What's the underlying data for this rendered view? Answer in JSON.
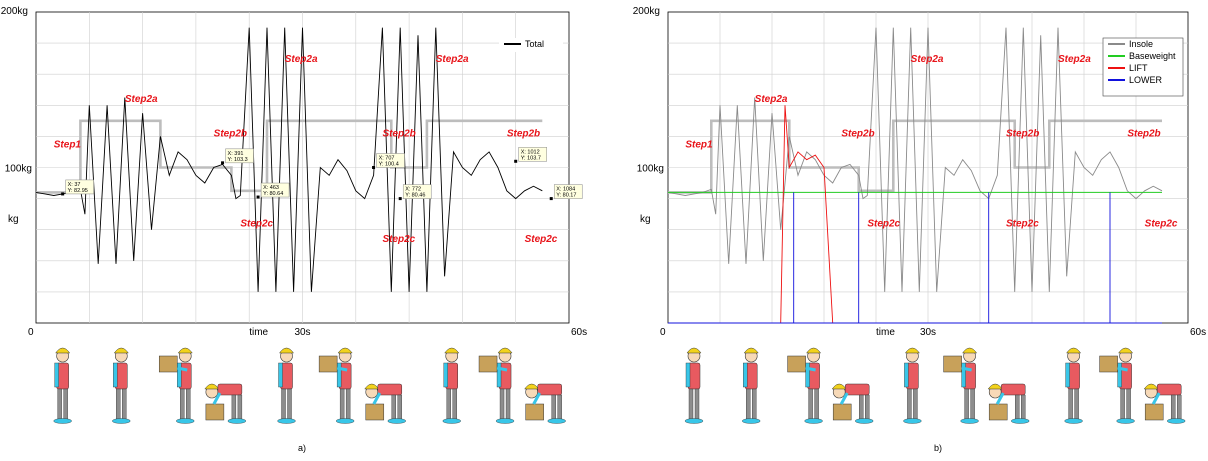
{
  "colors": {
    "total": "#000000",
    "insole": "#8a8a8a",
    "baseweight": "#22cc22",
    "lift": "#ee1111",
    "lower": "#1111dd",
    "ideal": "#bdbdbd",
    "step_label": "#e8141a"
  },
  "chart_data": [
    {
      "type": "line",
      "panel_caption": "a)",
      "xlabel": "time",
      "ylabel": "kg",
      "x_tick_labels": [
        "0",
        "30s",
        "60s"
      ],
      "y_tick_labels": [
        "100kg",
        "200kg"
      ],
      "xlim": [
        0,
        60
      ],
      "ylim": [
        0,
        200
      ],
      "grid": true,
      "legend_position": "top-right",
      "series": [
        {
          "name": "Total",
          "key": "total",
          "x": [
            0,
            1,
            2,
            3,
            4,
            5,
            5.5,
            6,
            7,
            8,
            9,
            10,
            11,
            12,
            13,
            14,
            15,
            16,
            17,
            18,
            19,
            20,
            21,
            22,
            22.5,
            23,
            24,
            25,
            26,
            27,
            28,
            29,
            30,
            31,
            32,
            33,
            34,
            35,
            36,
            37,
            38,
            39,
            40,
            41,
            42,
            43,
            44,
            45,
            46,
            47,
            48,
            49,
            50,
            51,
            52,
            53,
            54,
            55,
            56,
            57
          ],
          "y": [
            84,
            83,
            82,
            83,
            84,
            86,
            70,
            140,
            38,
            140,
            38,
            145,
            40,
            135,
            60,
            120,
            95,
            110,
            105,
            95,
            90,
            100,
            102,
            95,
            80,
            82,
            190,
            20,
            190,
            20,
            190,
            20,
            190,
            20,
            100,
            95,
            105,
            98,
            85,
            80,
            95,
            190,
            20,
            190,
            20,
            185,
            20,
            190,
            30,
            110,
            100,
            95,
            105,
            110,
            100,
            85,
            80,
            85,
            88,
            85
          ]
        }
      ],
      "ideal_profile": {
        "x": [
          0,
          5,
          5,
          14,
          14,
          22,
          22,
          26,
          26,
          40,
          40,
          44,
          44,
          57
        ],
        "y": [
          84,
          84,
          130,
          130,
          100,
          100,
          85,
          85,
          130,
          130,
          100,
          100,
          130,
          130
        ]
      },
      "step_labels": [
        {
          "text": "Step1",
          "x": 2,
          "y": 113
        },
        {
          "text": "Step2a",
          "x": 10,
          "y": 142
        },
        {
          "text": "Step2b",
          "x": 20,
          "y": 120
        },
        {
          "text": "Step2c",
          "x": 23,
          "y": 62
        },
        {
          "text": "Step2a",
          "x": 28,
          "y": 168
        },
        {
          "text": "Step2b",
          "x": 39,
          "y": 120
        },
        {
          "text": "Step2c",
          "x": 39,
          "y": 52
        },
        {
          "text": "Step2a",
          "x": 45,
          "y": 168
        },
        {
          "text": "Step2b",
          "x": 53,
          "y": 120
        },
        {
          "text": "Step2c",
          "x": 55,
          "y": 52
        }
      ],
      "datatips": [
        {
          "x_label": "X: 37",
          "y_label": "Y: 82.95",
          "x": 3,
          "y": 83
        },
        {
          "x_label": "X: 391",
          "y_label": "Y: 103.3",
          "x": 21,
          "y": 103
        },
        {
          "x_label": "X: 463",
          "y_label": "Y: 80.64",
          "x": 25,
          "y": 81
        },
        {
          "x_label": "X: 707",
          "y_label": "Y: 100.4",
          "x": 38,
          "y": 100
        },
        {
          "x_label": "X: 772",
          "y_label": "Y: 80.46",
          "x": 41,
          "y": 80
        },
        {
          "x_label": "X: 1012",
          "y_label": "Y: 103.7",
          "x": 54,
          "y": 104
        },
        {
          "x_label": "X: 1084",
          "y_label": "Y: 80.17",
          "x": 58,
          "y": 80
        }
      ]
    },
    {
      "type": "line",
      "panel_caption": "b)",
      "xlabel": "time",
      "ylabel": "kg",
      "x_tick_labels": [
        "0",
        "30s",
        "60s"
      ],
      "y_tick_labels": [
        "100kg",
        "200kg"
      ],
      "xlim": [
        0,
        60
      ],
      "ylim": [
        0,
        200
      ],
      "grid": true,
      "legend_position": "top-right",
      "series": [
        {
          "name": "Insole",
          "key": "insole",
          "x": [
            0,
            1,
            2,
            3,
            4,
            5,
            5.5,
            6,
            7,
            8,
            9,
            10,
            11,
            12,
            13,
            14,
            15,
            16,
            17,
            18,
            19,
            20,
            21,
            22,
            22.5,
            23,
            24,
            25,
            26,
            27,
            28,
            29,
            30,
            31,
            32,
            33,
            34,
            35,
            36,
            37,
            38,
            39,
            40,
            41,
            42,
            43,
            44,
            45,
            46,
            47,
            48,
            49,
            50,
            51,
            52,
            53,
            54,
            55,
            56,
            57
          ],
          "y": [
            84,
            83,
            82,
            83,
            84,
            86,
            70,
            140,
            38,
            140,
            38,
            145,
            40,
            135,
            60,
            120,
            95,
            110,
            105,
            95,
            90,
            100,
            102,
            95,
            80,
            82,
            190,
            20,
            190,
            20,
            190,
            20,
            190,
            20,
            100,
            95,
            105,
            98,
            85,
            80,
            95,
            190,
            20,
            190,
            20,
            185,
            20,
            190,
            30,
            110,
            100,
            95,
            105,
            110,
            100,
            85,
            80,
            85,
            88,
            85
          ]
        },
        {
          "name": "Baseweight",
          "key": "baseweight",
          "x": [
            0,
            57
          ],
          "y": [
            84,
            84
          ]
        },
        {
          "name": "LIFT",
          "key": "lift",
          "x": [
            13,
            13.5,
            14,
            15,
            16,
            17,
            18,
            19
          ],
          "y": [
            0,
            140,
            100,
            110,
            105,
            108,
            100,
            0
          ]
        },
        {
          "name": "LOWER",
          "key": "lower",
          "x": [
            14.5,
            14.5,
            22,
            22,
            37,
            37,
            51,
            51
          ],
          "y": [
            0,
            84,
            0,
            84,
            0,
            84,
            0,
            84
          ]
        }
      ],
      "ideal_profile": {
        "x": [
          0,
          5,
          5,
          14,
          14,
          22,
          22,
          26,
          26,
          40,
          40,
          44,
          44,
          57
        ],
        "y": [
          84,
          84,
          130,
          130,
          100,
          100,
          85,
          85,
          130,
          130,
          100,
          100,
          130,
          130
        ]
      },
      "step_labels": [
        {
          "text": "Step1",
          "x": 2,
          "y": 113
        },
        {
          "text": "Step2a",
          "x": 10,
          "y": 142
        },
        {
          "text": "Step2b",
          "x": 20,
          "y": 120
        },
        {
          "text": "Step2c",
          "x": 23,
          "y": 62
        },
        {
          "text": "Step2a",
          "x": 28,
          "y": 168
        },
        {
          "text": "Step2b",
          "x": 39,
          "y": 120
        },
        {
          "text": "Step2c",
          "x": 39,
          "y": 62
        },
        {
          "text": "Step2a",
          "x": 45,
          "y": 168
        },
        {
          "text": "Step2b",
          "x": 53,
          "y": 120
        },
        {
          "text": "Step2c",
          "x": 55,
          "y": 62
        }
      ]
    }
  ]
}
